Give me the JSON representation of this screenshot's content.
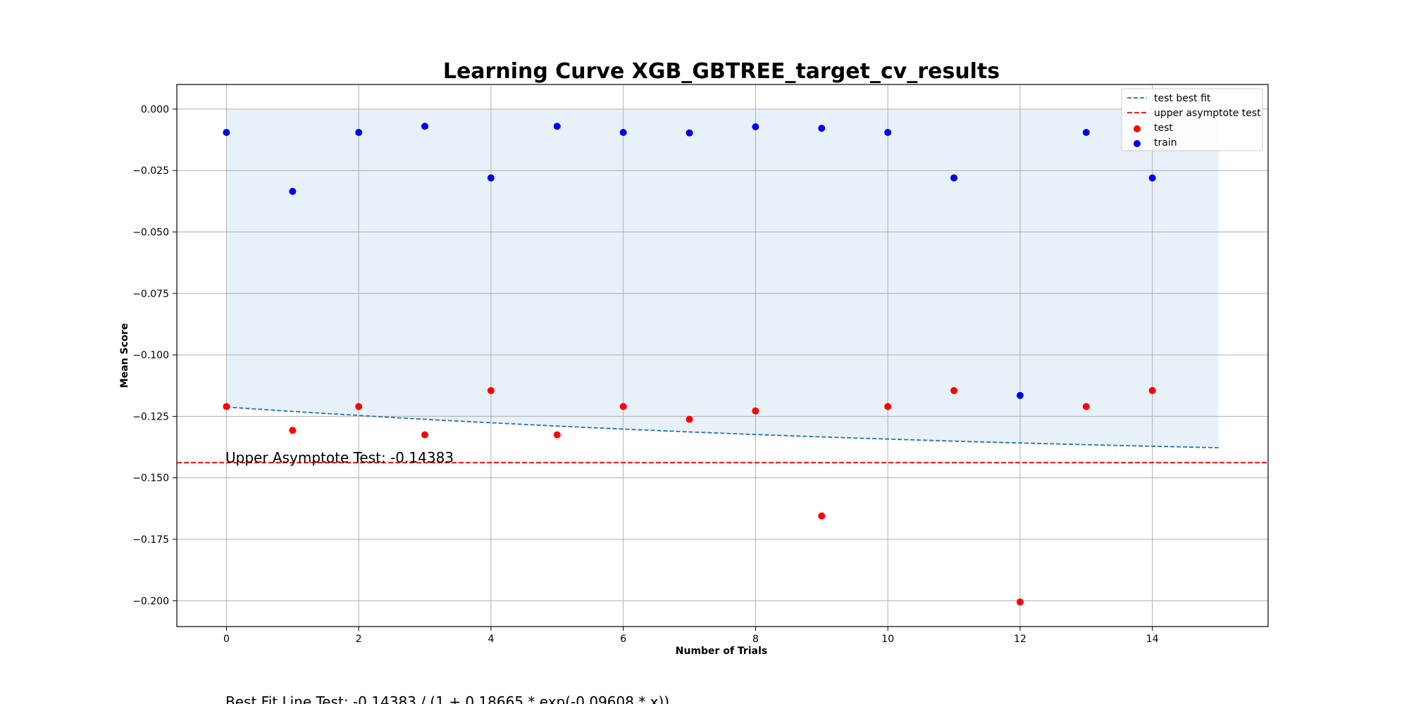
{
  "chart_data": {
    "type": "scatter",
    "title": "Learning Curve XGB_GBTREE_target_cv_results",
    "xlabel": "Number of Trials",
    "ylabel": "Mean Score",
    "xlim": [
      -0.75,
      15.75
    ],
    "ylim": [
      -0.2105,
      0.01
    ],
    "xticks": [
      0,
      2,
      4,
      6,
      8,
      10,
      12,
      14
    ],
    "xtick_labels": [
      "0",
      "2",
      "4",
      "6",
      "8",
      "10",
      "12",
      "14"
    ],
    "yticks": [
      0.0,
      -0.025,
      -0.05,
      -0.075,
      -0.1,
      -0.125,
      -0.15,
      -0.175,
      -0.2
    ],
    "ytick_labels": [
      "0.000",
      "−0.025",
      "−0.050",
      "−0.075",
      "−0.100",
      "−0.125",
      "−0.150",
      "−0.175",
      "−0.200"
    ],
    "grid": true,
    "legend_position": "top-right",
    "shaded_region": {
      "x": [
        0,
        15
      ],
      "y_top": 0.0,
      "y_bottom_from_fit": true,
      "color": "#e8f0f8"
    },
    "series": [
      {
        "name": "test best fit",
        "kind": "line",
        "style": "dashed",
        "color": "#1f77b4",
        "formula": {
          "a": -0.14383,
          "b": 0.18665,
          "c": -0.09608
        },
        "x_range": [
          0,
          15
        ]
      },
      {
        "name": "upper asymptote test",
        "kind": "hline",
        "style": "dashed",
        "color": "#ff0000",
        "y": -0.14383
      },
      {
        "name": "test",
        "kind": "scatter",
        "color": "#ff0000",
        "x": [
          0,
          1,
          2,
          3,
          4,
          5,
          6,
          7,
          8,
          9,
          10,
          11,
          12,
          13,
          14
        ],
        "y": [
          -0.121,
          -0.1307,
          -0.121,
          -0.1325,
          -0.1145,
          -0.1325,
          -0.121,
          -0.1262,
          -0.1228,
          -0.1655,
          -0.121,
          -0.1145,
          -0.2005,
          -0.121,
          -0.1145
        ]
      },
      {
        "name": "train",
        "kind": "scatter",
        "color": "#0000ee",
        "x": [
          0,
          1,
          2,
          3,
          4,
          5,
          6,
          7,
          8,
          9,
          10,
          11,
          12,
          13,
          14
        ],
        "y": [
          -0.0095,
          -0.0335,
          -0.0095,
          -0.007,
          -0.028,
          -0.007,
          -0.0095,
          -0.0097,
          -0.0072,
          -0.0078,
          -0.0095,
          -0.028,
          -0.1165,
          -0.0095,
          -0.028
        ]
      }
    ],
    "annotations": {
      "asymptote_text": "Upper Asymptote Test: -0.14383",
      "formula_text": "Best Fit Line Test: -0.14383 / (1 + 0.18665 * exp(-0.09608 * x))"
    }
  }
}
